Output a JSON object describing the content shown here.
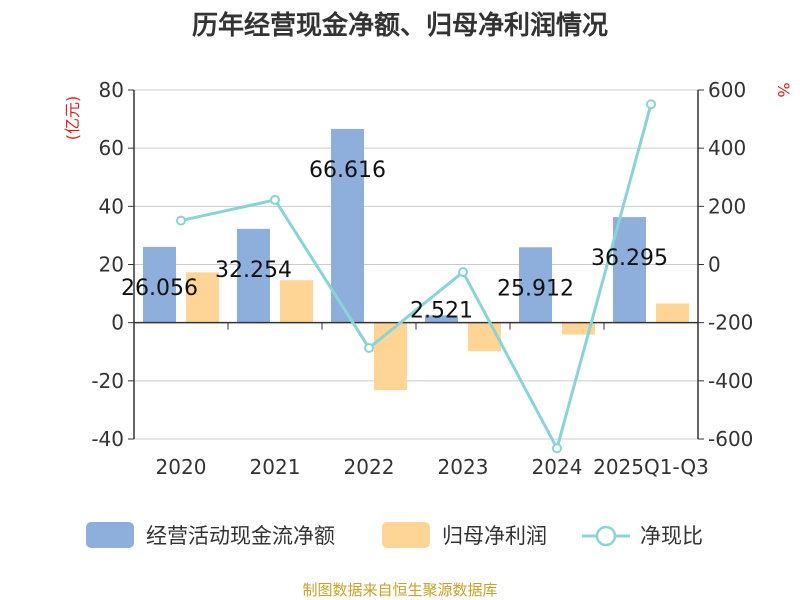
{
  "chart_data": {
    "type": "bar",
    "title": "历年经营现金净额、归母净利润情况",
    "categories": [
      "2020",
      "2021",
      "2022",
      "2023",
      "2024",
      "2025Q1-Q3"
    ],
    "series": [
      {
        "name": "经营活动现金流净额",
        "type": "bar",
        "axis": "left",
        "color": "#8eaedc",
        "values": [
          26.056,
          32.254,
          66.616,
          2.521,
          25.912,
          36.295
        ]
      },
      {
        "name": "归母净利润",
        "type": "bar",
        "axis": "left",
        "color": "#ffd595",
        "values": [
          17.3,
          14.6,
          -23.2,
          -9.8,
          -4.1,
          6.6
        ]
      },
      {
        "name": "净现比",
        "type": "line",
        "axis": "right",
        "color": "#88d4d8",
        "values": [
          151,
          222,
          -287,
          -26,
          -632,
          551
        ]
      }
    ],
    "data_labels": [
      "26.056",
      "32.254",
      "66.616",
      "2.521",
      "25.912",
      "36.295"
    ],
    "y_left": {
      "unit": "(亿元)",
      "ylim": [
        -40,
        80
      ],
      "ticks": [
        "80",
        "60",
        "40",
        "20",
        "0",
        "-20",
        "-40"
      ]
    },
    "y_right": {
      "unit": "%",
      "ylim": [
        -600,
        600
      ],
      "ticks": [
        "600",
        "400",
        "200",
        "0",
        "-200",
        "-400",
        "-600"
      ]
    },
    "grid": true,
    "legend_position": "bottom"
  },
  "source_text": "制图数据来自恒生聚源数据库"
}
